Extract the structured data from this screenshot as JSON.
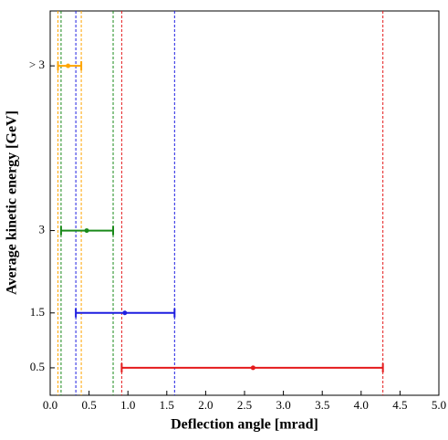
{
  "chart_data": {
    "type": "errorbar",
    "xlabel": "Deflection angle [mrad]",
    "ylabel": "Average kinetic energy [GeV]",
    "xlim": [
      0,
      5
    ],
    "ylim": [
      0,
      7
    ],
    "xticks": [
      {
        "value": 0,
        "label": "0.0"
      },
      0.5,
      {
        "value": 1,
        "label": "1.0"
      },
      1.5,
      {
        "value": 2,
        "label": "2.0"
      },
      2.5,
      {
        "value": 3,
        "label": "3.0"
      },
      3.5,
      {
        "value": 4,
        "label": "4.0"
      },
      4.5,
      {
        "value": 5,
        "label": "5.0"
      }
    ],
    "yticks": [
      0.5,
      1.5,
      3,
      {
        "value": 6,
        "label": "> 3"
      }
    ],
    "series": [
      {
        "color": "#e41a1c",
        "y": 0.5,
        "x": 2.61,
        "xmin": 0.92,
        "xmax": 4.28
      },
      {
        "color": "#1f1fe0",
        "y": 1.5,
        "x": 0.96,
        "xmin": 0.33,
        "xmax": 1.6
      },
      {
        "color": "#1a8a1a",
        "y": 3,
        "x": 0.47,
        "xmin": 0.14,
        "xmax": 0.81
      },
      {
        "color": "#ffa500",
        "y": 6,
        "x": 0.23,
        "xmin": 0.1,
        "xmax": 0.4
      }
    ]
  }
}
